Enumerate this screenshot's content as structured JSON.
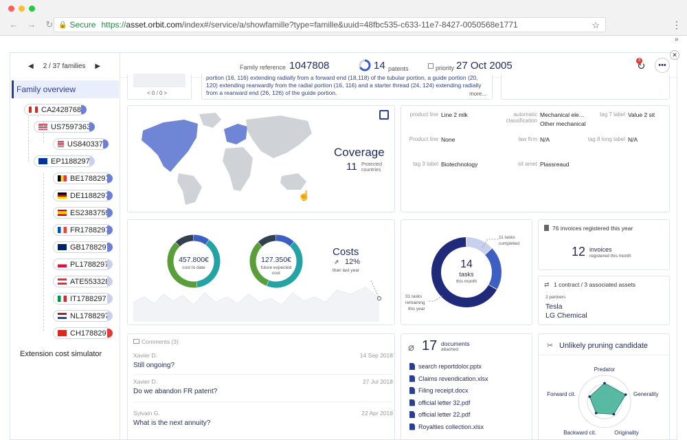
{
  "browser": {
    "secure": "Secure",
    "url_proto": "https://",
    "url_host": "asset.orbit.com",
    "url_path": "/index#/service/a/showfamille?type=famille&uuid=48fbc535-c633-11e7-8427-0050568e1771"
  },
  "sidebar": {
    "pager": "2 / 37 families",
    "overview": "Family overview",
    "nodes": [
      {
        "label": "CA2428768",
        "flag": "ca"
      },
      {
        "label": "US7597363",
        "flag": "us"
      },
      {
        "label": "US8403372",
        "flag": "us"
      },
      {
        "label": "EP1188297",
        "flag": "eu"
      },
      {
        "label": "BE1788297",
        "flag": "be"
      },
      {
        "label": "DE1188297",
        "flag": "de"
      },
      {
        "label": "ES2383759",
        "flag": "es"
      },
      {
        "label": "FR1788297",
        "flag": "fr"
      },
      {
        "label": "GB1788297",
        "flag": "gb"
      },
      {
        "label": "PL1788297",
        "flag": "pl"
      },
      {
        "label": "ATE553328",
        "flag": "at"
      },
      {
        "label": "IT1788297",
        "flag": "it"
      },
      {
        "label": "NL1788297",
        "flag": "nl"
      },
      {
        "label": "CH1788297",
        "flag": "ch"
      }
    ],
    "extension": "Extension cost simulator"
  },
  "header": {
    "family_ref_label": "Family reference",
    "family_ref": "1047808",
    "patents_count": "14",
    "patents_label": "patents",
    "priority_label": "priority",
    "priority_date": "27 Oct 2005",
    "notif_count": "3"
  },
  "top_text": {
    "pager": "< 0 / 0 >",
    "line1": "portion (16, 116) extending radially from a forward end (18,118) of the tubular portion, a guide portion (20,",
    "line2": "120) extending rearwardly from the radial portion (16, 116) and a starter thread (24, 124) extending radially",
    "line3": "from a rearward end (26, 126) of the guide portion.",
    "more": "more..."
  },
  "coverage": {
    "title": "Coverage",
    "count": "11",
    "label1": "Protected",
    "label2": "countries"
  },
  "details": [
    {
      "label": "product line",
      "value": "Line 2 mlk"
    },
    {
      "label": "automatic classification",
      "value": "Mechanical ele...",
      "value2": "Other mechanical"
    },
    {
      "label": "tag 7 label",
      "value": "Value 2 sit"
    },
    {
      "label": "Product line",
      "value": "None"
    },
    {
      "label": "law firm",
      "value": "N/A"
    },
    {
      "label": "tag 8 long label",
      "value": "N/A"
    },
    {
      "label": "tag 3 label",
      "value": "Biotechnology"
    },
    {
      "label": "sit amet",
      "value": "Plassreaud"
    }
  ],
  "costs": {
    "to_date_value": "457.800€",
    "to_date_label": "cost to date",
    "future_value": "127.350€",
    "future_label1": "future expected",
    "future_label2": "cost",
    "title": "Costs",
    "pct": "12%",
    "pct_label": "than last year"
  },
  "tasks": {
    "count": "14",
    "label": "tasks",
    "sub": "this month",
    "completed_count": "11 tasks",
    "completed_label": "completed",
    "remaining_count": "31 tasks",
    "remaining_label1": "remaining",
    "remaining_label2": "this year",
    "completed_value": 11,
    "remaining_value": 31
  },
  "invoices": {
    "header": "76 invoices registered this year",
    "count": "12",
    "label": "invoices",
    "sub": "registered this month"
  },
  "contracts": {
    "header": "1 contract / 3 associated assets",
    "partners_label": "2 partners",
    "partner1": "Tesla",
    "partner2": "LG Chemical"
  },
  "comments": {
    "title": "Comments (3)",
    "items": [
      {
        "author": "Xavier D.",
        "date": "14 Sep 2018",
        "text": "Still ongoing?"
      },
      {
        "author": "Xavier D.",
        "date": "27 Jul 2018",
        "text": "Do we abandon FR patent?"
      },
      {
        "author": "Sylvain G.",
        "date": "22 Apr 2018",
        "text": "What is the next annuity?"
      }
    ]
  },
  "documents": {
    "count": "17",
    "label1": "documents",
    "label2": "attached",
    "files": [
      "search reportdolor.pptx",
      "Claims revendication.xlsx",
      "Filing receipt.docx",
      "official letter 32.pdf",
      "official letter 22.pdf",
      "Royalties collection.xlsx"
    ]
  },
  "pruning": {
    "title": "Unlikely pruning candidate",
    "axes": [
      "Predator",
      "Generality",
      "Originality",
      "Backward cit.",
      "Forward cit."
    ],
    "values": [
      0.7,
      0.85,
      0.6,
      0.55,
      0.6
    ]
  },
  "colors": {
    "navy": "#1f2a5c",
    "blue": "#3e5fc2",
    "green": "#5a9e3a",
    "teal": "#23a3a3",
    "dark": "#33404f",
    "radar": "#3cae94"
  }
}
